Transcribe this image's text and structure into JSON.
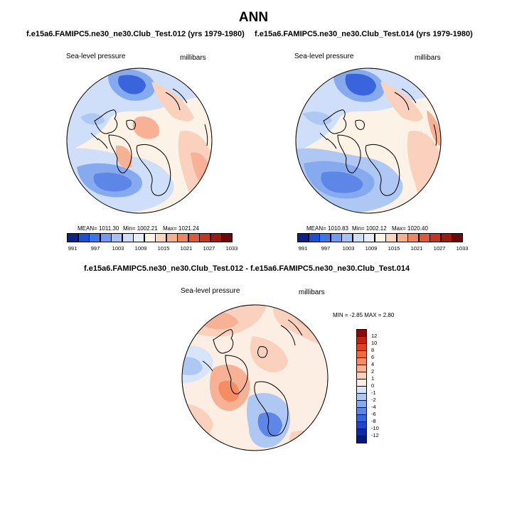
{
  "figure": {
    "season": "ANN",
    "panel1": {
      "case_title": "f.e15a6.FAMIPC5.ne30_ne30.Club_Test.012 (yrs 1979-1980)",
      "variable": "Sea-level pressure",
      "units": "millibars",
      "mean_text": "MEAN= 1011.30",
      "min_text": "Min= 1002.21",
      "max_text": "Max= 1021.24"
    },
    "panel2": {
      "case_title": "f.e15a6.FAMIPC5.ne30_ne30.Club_Test.014 (yrs 1979-1980)",
      "variable": "Sea-level pressure",
      "units": "millibars",
      "mean_text": "MEAN= 1010.83",
      "min_text": "Min= 1002.12",
      "max_text": "Max= 1020.40"
    },
    "panel3": {
      "diff_title": "f.e15a6.FAMIPC5.ne30_ne30.Club_Test.012 - f.e15a6.FAMIPC5.ne30_ne30.Club_Test.014",
      "variable": "Sea-level pressure",
      "units": "millibars",
      "minmax_text": "MIN =  -2.85 MAX =   2.80"
    }
  },
  "abs_colorbar": {
    "labels": [
      "991",
      "997",
      "1003",
      "1009",
      "1015",
      "1021",
      "1027",
      "1033"
    ],
    "colors": [
      "#08238c",
      "#1a4fd6",
      "#3a76ec",
      "#6f9cf2",
      "#a3c2f6",
      "#cfdff9",
      "#e6eefb",
      "#fdf2e6",
      "#fbd6b8",
      "#f6b08c",
      "#ef8460",
      "#e0583a",
      "#c63520",
      "#9c1a10",
      "#6e0808"
    ]
  },
  "diff_colorbar": {
    "labels": [
      "12",
      "10",
      "8",
      "6",
      "4",
      "2",
      "1",
      "0",
      "-1",
      "-2",
      "-4",
      "-6",
      "-8",
      "-10",
      "-12"
    ],
    "colors": [
      "#8c0a0a",
      "#c1230f",
      "#e2431f",
      "#f16a3d",
      "#f48d64",
      "#f7b296",
      "#fad1bd",
      "#fdeee3",
      "#d7e5f8",
      "#aec8f3",
      "#86aaee",
      "#5d86e6",
      "#3a64dc",
      "#1f45c8",
      "#0a2aa6",
      "#021a78"
    ]
  }
}
